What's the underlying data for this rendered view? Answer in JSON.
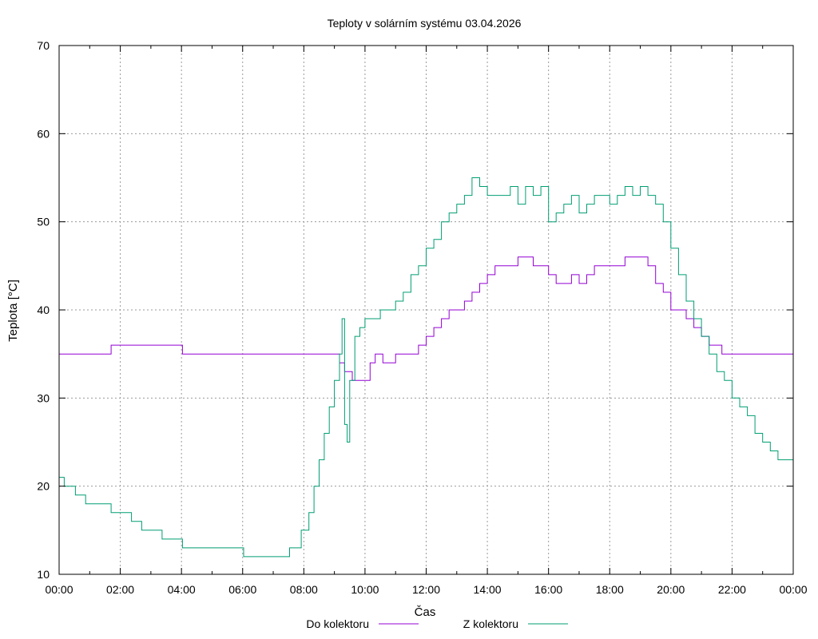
{
  "chart_data": {
    "type": "line",
    "title": "Teploty v solárním systému 03.04.2026",
    "xlabel": "Čas",
    "ylabel": "Teplota [°C]",
    "xlim": [
      "00:00",
      "24:00"
    ],
    "ylim": [
      10,
      70
    ],
    "grid": true,
    "legend_position": "bottom",
    "x_ticks": [
      "00:00",
      "02:00",
      "04:00",
      "06:00",
      "08:00",
      "10:00",
      "12:00",
      "14:00",
      "16:00",
      "18:00",
      "20:00",
      "22:00",
      "00:00"
    ],
    "y_ticks": [
      10,
      20,
      30,
      40,
      50,
      60,
      70
    ],
    "series": [
      {
        "name": "Do kolektoru",
        "color": "#9400d3",
        "points": [
          [
            "00:00",
            35
          ],
          [
            "01:40",
            35
          ],
          [
            "01:42",
            36
          ],
          [
            "04:00",
            36
          ],
          [
            "04:02",
            35
          ],
          [
            "09:00",
            35
          ],
          [
            "09:10",
            34
          ],
          [
            "09:20",
            33
          ],
          [
            "09:35",
            32
          ],
          [
            "10:00",
            32
          ],
          [
            "10:10",
            34
          ],
          [
            "10:20",
            35
          ],
          [
            "10:35",
            34
          ],
          [
            "11:00",
            35
          ],
          [
            "11:30",
            35
          ],
          [
            "11:45",
            36
          ],
          [
            "12:00",
            37
          ],
          [
            "12:15",
            38
          ],
          [
            "12:30",
            39
          ],
          [
            "12:45",
            40
          ],
          [
            "13:00",
            40
          ],
          [
            "13:15",
            41
          ],
          [
            "13:30",
            42
          ],
          [
            "13:45",
            43
          ],
          [
            "14:00",
            44
          ],
          [
            "14:15",
            45
          ],
          [
            "14:30",
            45
          ],
          [
            "14:45",
            45
          ],
          [
            "15:00",
            46
          ],
          [
            "15:15",
            46
          ],
          [
            "15:30",
            45
          ],
          [
            "15:45",
            45
          ],
          [
            "16:00",
            44
          ],
          [
            "16:15",
            43
          ],
          [
            "16:30",
            43
          ],
          [
            "16:45",
            44
          ],
          [
            "17:00",
            43
          ],
          [
            "17:15",
            44
          ],
          [
            "17:30",
            45
          ],
          [
            "17:45",
            45
          ],
          [
            "18:00",
            45
          ],
          [
            "18:15",
            45
          ],
          [
            "18:30",
            46
          ],
          [
            "18:45",
            46
          ],
          [
            "19:00",
            46
          ],
          [
            "19:15",
            45
          ],
          [
            "19:30",
            43
          ],
          [
            "19:45",
            42
          ],
          [
            "20:00",
            40
          ],
          [
            "20:15",
            40
          ],
          [
            "20:30",
            39
          ],
          [
            "20:45",
            38
          ],
          [
            "21:00",
            37
          ],
          [
            "21:15",
            36
          ],
          [
            "21:30",
            36
          ],
          [
            "21:40",
            35
          ],
          [
            "24:00",
            35
          ]
        ]
      },
      {
        "name": "Z kolektoru",
        "color": "#009e73",
        "points": [
          [
            "00:00",
            21
          ],
          [
            "00:10",
            20
          ],
          [
            "00:30",
            20
          ],
          [
            "00:32",
            19
          ],
          [
            "00:50",
            19
          ],
          [
            "00:52",
            18
          ],
          [
            "01:40",
            18
          ],
          [
            "01:42",
            17
          ],
          [
            "02:20",
            17
          ],
          [
            "02:22",
            16
          ],
          [
            "02:40",
            16
          ],
          [
            "02:42",
            15
          ],
          [
            "03:20",
            15
          ],
          [
            "03:22",
            14
          ],
          [
            "04:00",
            14
          ],
          [
            "04:02",
            13
          ],
          [
            "06:00",
            13
          ],
          [
            "06:02",
            12
          ],
          [
            "07:30",
            12
          ],
          [
            "07:32",
            13
          ],
          [
            "07:50",
            13
          ],
          [
            "07:55",
            15
          ],
          [
            "08:10",
            17
          ],
          [
            "08:20",
            20
          ],
          [
            "08:30",
            23
          ],
          [
            "08:40",
            26
          ],
          [
            "08:50",
            29
          ],
          [
            "09:00",
            32
          ],
          [
            "09:10",
            35
          ],
          [
            "09:15",
            39
          ],
          [
            "09:20",
            27
          ],
          [
            "09:25",
            25
          ],
          [
            "09:30",
            32
          ],
          [
            "09:40",
            37
          ],
          [
            "09:50",
            38
          ],
          [
            "10:00",
            39
          ],
          [
            "10:15",
            39
          ],
          [
            "10:30",
            40
          ],
          [
            "10:45",
            40
          ],
          [
            "11:00",
            41
          ],
          [
            "11:15",
            42
          ],
          [
            "11:30",
            44
          ],
          [
            "11:45",
            45
          ],
          [
            "12:00",
            47
          ],
          [
            "12:15",
            48
          ],
          [
            "12:30",
            50
          ],
          [
            "12:45",
            51
          ],
          [
            "13:00",
            52
          ],
          [
            "13:15",
            53
          ],
          [
            "13:30",
            55
          ],
          [
            "13:45",
            54
          ],
          [
            "14:00",
            53
          ],
          [
            "14:30",
            53
          ],
          [
            "14:45",
            54
          ],
          [
            "15:00",
            52
          ],
          [
            "15:15",
            54
          ],
          [
            "15:30",
            53
          ],
          [
            "15:45",
            54
          ],
          [
            "16:00",
            50
          ],
          [
            "16:15",
            51
          ],
          [
            "16:30",
            52
          ],
          [
            "16:45",
            53
          ],
          [
            "17:00",
            51
          ],
          [
            "17:15",
            52
          ],
          [
            "17:30",
            53
          ],
          [
            "17:45",
            53
          ],
          [
            "18:00",
            52
          ],
          [
            "18:15",
            53
          ],
          [
            "18:30",
            54
          ],
          [
            "18:45",
            53
          ],
          [
            "19:00",
            54
          ],
          [
            "19:15",
            53
          ],
          [
            "19:30",
            52
          ],
          [
            "19:45",
            50
          ],
          [
            "20:00",
            47
          ],
          [
            "20:15",
            44
          ],
          [
            "20:30",
            41
          ],
          [
            "20:45",
            39
          ],
          [
            "21:00",
            37
          ],
          [
            "21:15",
            35
          ],
          [
            "21:30",
            33
          ],
          [
            "21:45",
            32
          ],
          [
            "22:00",
            30
          ],
          [
            "22:15",
            29
          ],
          [
            "22:30",
            28
          ],
          [
            "22:45",
            26
          ],
          [
            "23:00",
            25
          ],
          [
            "23:15",
            24
          ],
          [
            "23:30",
            23
          ],
          [
            "23:55",
            23
          ],
          [
            "24:00",
            22
          ]
        ]
      }
    ]
  }
}
